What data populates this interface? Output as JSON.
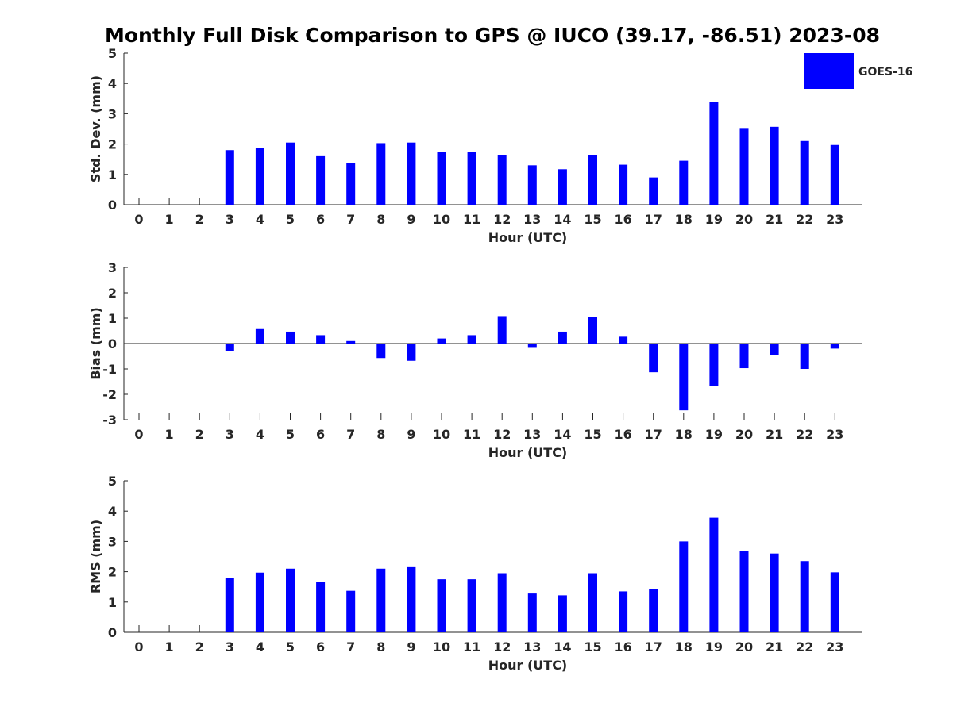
{
  "title": "Monthly Full Disk Comparison to GPS @ IUCO (39.17, -86.51) 2023-08",
  "legend": {
    "label": "GOES-16",
    "color": "#0000ff"
  },
  "chart_data": [
    {
      "type": "bar",
      "xlabel": "Hour (UTC)",
      "ylabel": "Std. Dev. (mm)",
      "ylim": [
        0,
        5
      ],
      "yticks": [
        "0",
        "1",
        "2",
        "3",
        "4",
        "5"
      ],
      "categories": [
        "0",
        "1",
        "2",
        "3",
        "4",
        "5",
        "6",
        "7",
        "8",
        "9",
        "10",
        "11",
        "12",
        "13",
        "14",
        "15",
        "16",
        "17",
        "18",
        "19",
        "20",
        "21",
        "22",
        "23"
      ],
      "series": [
        {
          "name": "GOES-16",
          "values": [
            null,
            null,
            null,
            1.8,
            1.87,
            2.05,
            1.6,
            1.37,
            2.03,
            2.05,
            1.73,
            1.73,
            1.63,
            1.3,
            1.17,
            1.63,
            1.32,
            0.9,
            1.45,
            3.4,
            2.53,
            2.57,
            2.1,
            1.97
          ]
        }
      ],
      "legend": "top-right"
    },
    {
      "type": "bar",
      "xlabel": "Hour (UTC)",
      "ylabel": "Bias (mm)",
      "ylim": [
        -3,
        3
      ],
      "yticks": [
        "-3",
        "-2",
        "-1",
        "0",
        "1",
        "2",
        "3"
      ],
      "categories": [
        "0",
        "1",
        "2",
        "3",
        "4",
        "5",
        "6",
        "7",
        "8",
        "9",
        "10",
        "11",
        "12",
        "13",
        "14",
        "15",
        "16",
        "17",
        "18",
        "19",
        "20",
        "21",
        "22",
        "23"
      ],
      "series": [
        {
          "name": "GOES-16",
          "values": [
            null,
            null,
            null,
            -0.3,
            0.57,
            0.47,
            0.33,
            0.1,
            -0.57,
            -0.68,
            0.2,
            0.33,
            1.08,
            -0.17,
            0.47,
            1.05,
            0.27,
            -1.13,
            -2.63,
            -1.67,
            -0.97,
            -0.45,
            -1.0,
            -0.2
          ]
        }
      ]
    },
    {
      "type": "bar",
      "xlabel": "Hour (UTC)",
      "ylabel": "RMS (mm)",
      "ylim": [
        0,
        5
      ],
      "yticks": [
        "0",
        "1",
        "2",
        "3",
        "4",
        "5"
      ],
      "categories": [
        "0",
        "1",
        "2",
        "3",
        "4",
        "5",
        "6",
        "7",
        "8",
        "9",
        "10",
        "11",
        "12",
        "13",
        "14",
        "15",
        "16",
        "17",
        "18",
        "19",
        "20",
        "21",
        "22",
        "23"
      ],
      "series": [
        {
          "name": "GOES-16",
          "values": [
            null,
            null,
            null,
            1.8,
            1.97,
            2.1,
            1.65,
            1.37,
            2.1,
            2.15,
            1.75,
            1.75,
            1.95,
            1.28,
            1.22,
            1.95,
            1.35,
            1.43,
            3.0,
            3.78,
            2.68,
            2.6,
            2.35,
            1.98
          ]
        }
      ]
    }
  ]
}
